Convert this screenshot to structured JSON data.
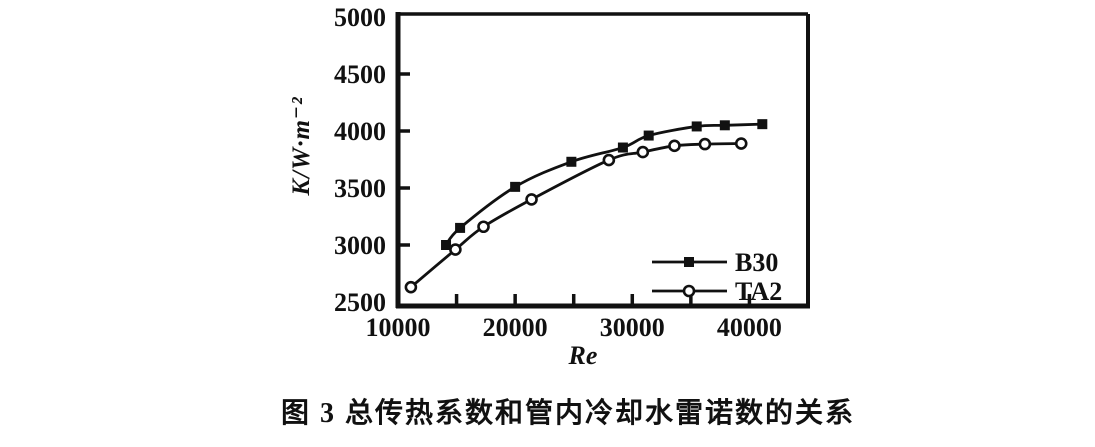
{
  "figure": {
    "caption": "图 3  总传热系数和管内冷却水雷诺数的关系"
  },
  "chart_data": {
    "type": "line",
    "title": "",
    "xlabel": "Re",
    "ylabel": "K/W·m⁻²",
    "xlim": [
      10000,
      45000
    ],
    "ylim": [
      2500,
      5000
    ],
    "x_tick_labels": [
      10000,
      20000,
      30000,
      40000
    ],
    "x_tick_marks": [
      15000,
      20000,
      25000,
      30000,
      35000,
      40000
    ],
    "y_tick_labels": [
      2500,
      3000,
      3500,
      4000,
      4500,
      5000
    ],
    "y_tick_marks": [
      3000,
      3500,
      4000,
      4500
    ],
    "grid": false,
    "legend_position": "inside-bottom-right",
    "ink_color": "#111111",
    "background_color": "#ffffff",
    "series": [
      {
        "name": "B30",
        "marker": "filled-square",
        "color": "#111111",
        "points": [
          [
            14100,
            3000
          ],
          [
            15300,
            3150
          ],
          [
            20000,
            3510
          ],
          [
            24800,
            3730
          ],
          [
            29200,
            3855
          ],
          [
            31400,
            3960
          ],
          [
            35500,
            4040
          ],
          [
            37900,
            4050
          ],
          [
            41100,
            4060
          ]
        ]
      },
      {
        "name": "TA2",
        "marker": "open-circle",
        "color": "#111111",
        "points": [
          [
            11100,
            2630
          ],
          [
            14900,
            2960
          ],
          [
            17300,
            3160
          ],
          [
            21400,
            3400
          ],
          [
            28000,
            3745
          ],
          [
            30900,
            3815
          ],
          [
            33600,
            3870
          ],
          [
            36200,
            3885
          ],
          [
            39300,
            3890
          ]
        ]
      }
    ]
  }
}
